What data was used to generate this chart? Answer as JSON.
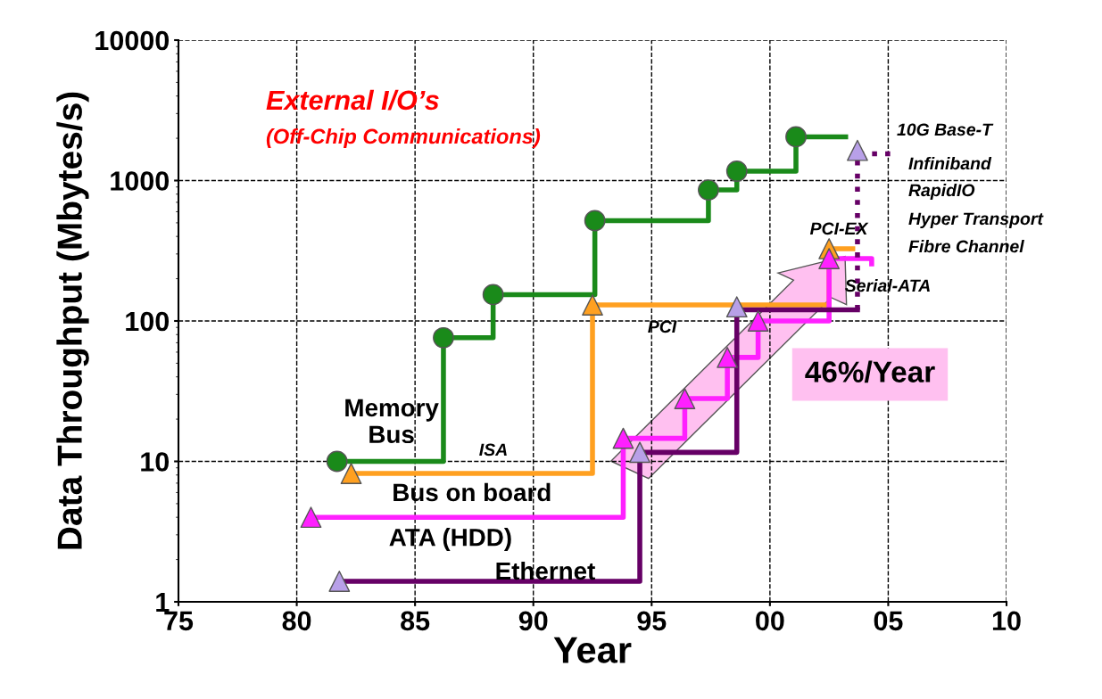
{
  "chart_data": {
    "type": "step",
    "xlabel": "Year",
    "ylabel": "Data Throughput (Mbytes/s)",
    "log": "y",
    "grid": true,
    "xlim": [
      1975,
      2010
    ],
    "xticks": [
      {
        "value": 1975,
        "label": "75"
      },
      {
        "value": 1980,
        "label": "80"
      },
      {
        "value": 1985,
        "label": "85"
      },
      {
        "value": 1990,
        "label": "90"
      },
      {
        "value": 1995,
        "label": "95"
      },
      {
        "value": 2000,
        "label": "00"
      },
      {
        "value": 2005,
        "label": "05"
      },
      {
        "value": 2010,
        "label": "10"
      }
    ],
    "ylim": [
      1,
      10000
    ],
    "yticks": [
      1,
      10,
      100,
      1000,
      10000
    ],
    "series": [
      {
        "name": "Memory Bus",
        "color": "#1a8a1a",
        "x": [
          1981.7,
          1986.2,
          1988.3,
          1992.6,
          1997.4,
          1998.6,
          2001.1,
          2003.2
        ],
        "values": [
          10,
          76,
          154,
          518,
          857,
          1166,
          2048,
          2048
        ]
      },
      {
        "type": "scatter",
        "marker": "circle",
        "color": "#1a8a1a",
        "x": [
          1981.7,
          1986.2,
          1988.3,
          1992.6,
          1997.4,
          1998.6,
          2001.1
        ],
        "values": [
          10,
          76,
          154,
          518,
          857,
          1166,
          2048
        ]
      },
      {
        "name": "Bus on board",
        "type": "step",
        "color": "#ffa020",
        "x": [
          1982.3,
          1992.5,
          2002.5,
          2003.5
        ],
        "values": [
          8.2,
          130,
          327,
          327
        ]
      },
      {
        "type": "scatter",
        "marker": "triangle",
        "color": "#ffa020",
        "x": [
          1982.3,
          1992.5,
          2002.5
        ],
        "values": [
          8.2,
          130,
          327
        ]
      },
      {
        "name": "ATA (HDD)",
        "type": "step",
        "color": "#ff20ff",
        "x": [
          1980.6,
          1993.8,
          1996.4,
          1998.2,
          1999.5,
          2002.5,
          2004.3
        ],
        "values": [
          4.0,
          14.6,
          28,
          55,
          100,
          278,
          255
        ]
      },
      {
        "type": "scatter",
        "marker": "triangle",
        "color": "#ff20ff",
        "x": [
          1980.6,
          1993.8,
          1996.4,
          1998.2,
          1999.5,
          2002.5
        ],
        "values": [
          4.0,
          14.6,
          28,
          55,
          100,
          278
        ]
      },
      {
        "name": "Ethernet",
        "type": "step",
        "color": "#660066",
        "x": [
          1981.8,
          1994.5,
          1998.6,
          2003.7
        ],
        "values": [
          1.4,
          11.6,
          120,
          120
        ]
      },
      {
        "type": "line",
        "line_style": "dotted",
        "color": "#660066",
        "x": [
          2003.7,
          2003.7,
          2005.2
        ],
        "values": [
          120,
          1550,
          1550
        ]
      },
      {
        "type": "scatter",
        "marker": "triangle",
        "color": "#b8a0e8",
        "x": [
          1981.8,
          1994.5,
          1998.6,
          2003.7
        ],
        "values": [
          1.4,
          11.6,
          126,
          1640
        ]
      }
    ],
    "annotations": [
      "External I/O’s",
      "(Off-Chip Communications)",
      "ISA",
      "PCI",
      "PCI-EX",
      "Serial-ATA",
      "10G Base-T",
      "Infiniband",
      "RapidIO",
      "Hyper Transport",
      "Fibre Channel",
      "46%/Year"
    ]
  }
}
